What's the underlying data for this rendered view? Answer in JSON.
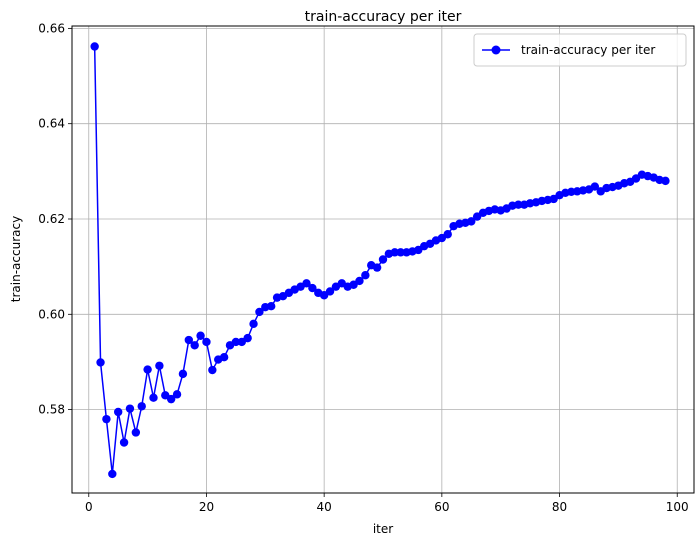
{
  "chart_data": {
    "type": "line",
    "title": "train-accuracy per iter",
    "xlabel": "iter",
    "ylabel": "train-accuracy",
    "xlim": [
      -2.85,
      102.85
    ],
    "ylim": [
      0.5625,
      0.6605
    ],
    "xticks": [
      0,
      20,
      40,
      60,
      80,
      100
    ],
    "xtick_labels": [
      "0",
      "20",
      "40",
      "60",
      "80",
      "100"
    ],
    "yticks": [
      0.58,
      0.6,
      0.62,
      0.64,
      0.66
    ],
    "ytick_labels": [
      "0.58",
      "0.60",
      "0.62",
      "0.64",
      "0.66"
    ],
    "grid": true,
    "legend_position": "top-right",
    "series": [
      {
        "name": "train-accuracy per iter",
        "color": "#0000ff",
        "marker": "circle",
        "x": [
          1,
          2,
          3,
          4,
          5,
          6,
          7,
          8,
          9,
          10,
          11,
          12,
          13,
          14,
          15,
          16,
          17,
          18,
          19,
          20,
          21,
          22,
          23,
          24,
          25,
          26,
          27,
          28,
          29,
          30,
          31,
          32,
          33,
          34,
          35,
          36,
          37,
          38,
          39,
          40,
          41,
          42,
          43,
          44,
          45,
          46,
          47,
          48,
          49,
          50,
          51,
          52,
          53,
          54,
          55,
          56,
          57,
          58,
          59,
          60,
          61,
          62,
          63,
          64,
          65,
          66,
          67,
          68,
          69,
          70,
          71,
          72,
          73,
          74,
          75,
          76,
          77,
          78,
          79,
          80,
          81,
          82,
          83,
          84,
          85,
          86,
          87,
          88,
          89,
          90,
          91,
          92,
          93,
          94,
          95,
          96,
          97,
          98
        ],
        "y": [
          0.6562,
          0.5899,
          0.578,
          0.5665,
          0.5795,
          0.5731,
          0.5802,
          0.5752,
          0.5807,
          0.5884,
          0.5825,
          0.5892,
          0.583,
          0.5822,
          0.5832,
          0.5875,
          0.5946,
          0.5935,
          0.5955,
          0.5942,
          0.5883,
          0.5905,
          0.591,
          0.5935,
          0.5942,
          0.5942,
          0.595,
          0.598,
          0.6005,
          0.6015,
          0.6017,
          0.6035,
          0.6038,
          0.6045,
          0.6052,
          0.6058,
          0.6065,
          0.6055,
          0.6045,
          0.604,
          0.6048,
          0.6058,
          0.6065,
          0.6058,
          0.6062,
          0.607,
          0.6082,
          0.6103,
          0.6098,
          0.6115,
          0.6127,
          0.613,
          0.613,
          0.613,
          0.6132,
          0.6135,
          0.6143,
          0.6148,
          0.6155,
          0.616,
          0.6168,
          0.6185,
          0.619,
          0.6192,
          0.6195,
          0.6205,
          0.6213,
          0.6217,
          0.622,
          0.6218,
          0.6222,
          0.6228,
          0.623,
          0.623,
          0.6233,
          0.6235,
          0.6238,
          0.624,
          0.6242,
          0.625,
          0.6255,
          0.6257,
          0.6258,
          0.626,
          0.6262,
          0.6268,
          0.6258,
          0.6265,
          0.6267,
          0.627,
          0.6275,
          0.6278,
          0.6285,
          0.6293,
          0.629,
          0.6287,
          0.6282,
          0.628
        ]
      }
    ]
  }
}
